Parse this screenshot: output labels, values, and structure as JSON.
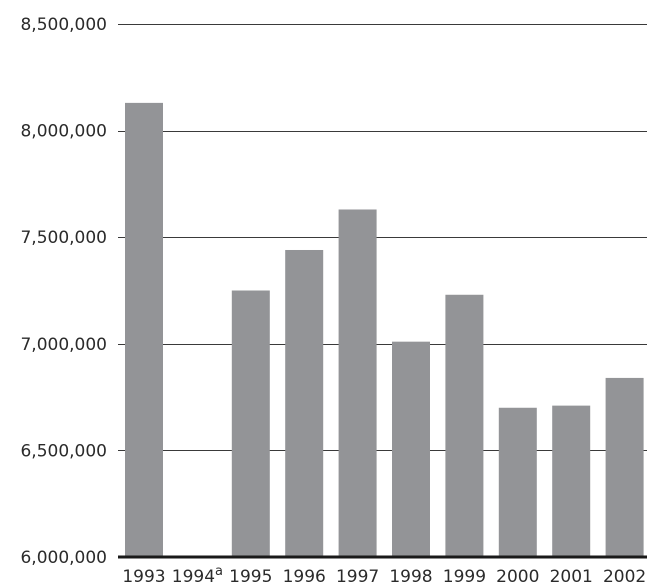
{
  "chart_data": {
    "type": "bar",
    "title": "",
    "xlabel": "",
    "ylabel": "",
    "categories": [
      "1993",
      "1994",
      "1995",
      "1996",
      "1997",
      "1998",
      "1999",
      "2000",
      "2001",
      "2002"
    ],
    "category_superscripts": [
      "",
      "a",
      "",
      "",
      "",
      "",
      "",
      "",
      "",
      ""
    ],
    "values": [
      8130000,
      null,
      7250000,
      7440000,
      7630000,
      7010000,
      7230000,
      6700000,
      6710000,
      6840000
    ],
    "ylim": [
      6000000,
      8500000
    ],
    "yticks": [
      6000000,
      6500000,
      7000000,
      7500000,
      8000000,
      8500000
    ],
    "ytick_labels": [
      "6,000,000",
      "6,500,000",
      "7,000,000",
      "7,500,000",
      "8,000,000",
      "8,500,000"
    ],
    "grid": true,
    "legend": "none",
    "colors": {
      "bar": "#939497",
      "grid": "#3a3a3a",
      "axis": "#1a1a1a",
      "text": "#2b2b2b"
    }
  }
}
